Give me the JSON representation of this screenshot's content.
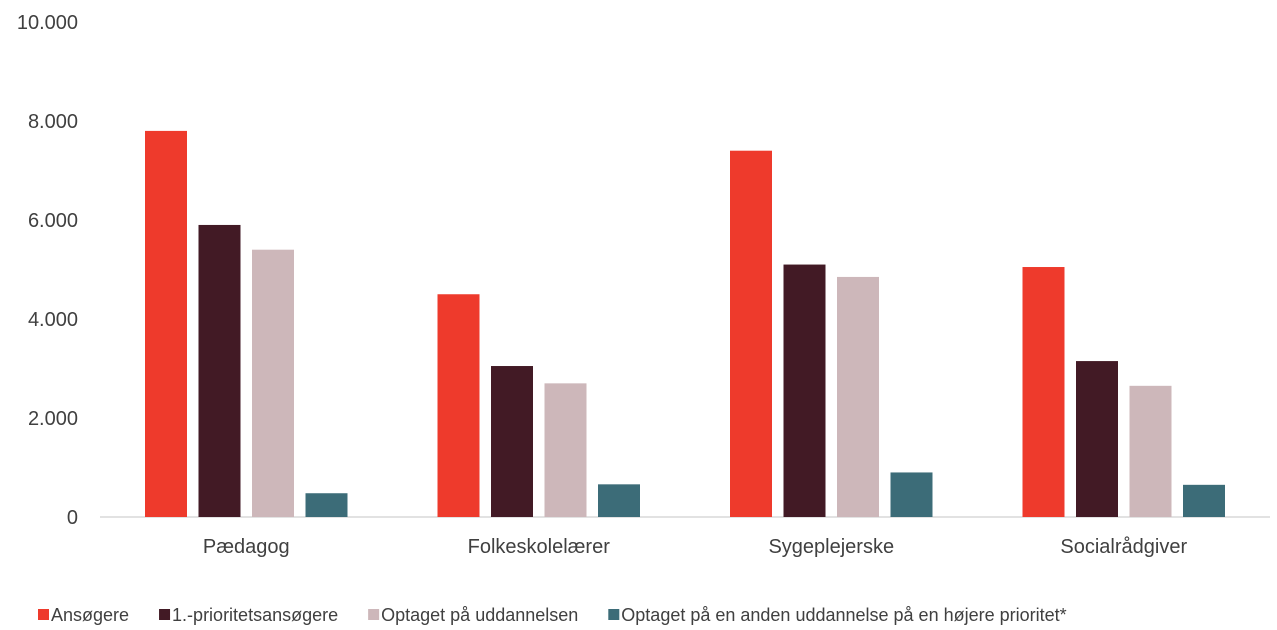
{
  "chart_data": {
    "type": "bar",
    "title": "",
    "xlabel": "",
    "ylabel": "",
    "ylim": [
      0,
      10000
    ],
    "yticks": [
      0,
      2000,
      4000,
      6000,
      8000,
      10000
    ],
    "ytick_labels": [
      "0",
      "2.000",
      "4.000",
      "6.000",
      "8.000",
      "10.000"
    ],
    "grid": false,
    "legend_position": "bottom",
    "categories": [
      "Pædagog",
      "Folkeskolelærer",
      "Sygeplejerske",
      "Socialrådgiver"
    ],
    "series": [
      {
        "name": "Ansøgere",
        "color": "#EE3A2C",
        "values": [
          7800,
          4500,
          7400,
          5050
        ]
      },
      {
        "name": "1.-prioritetsansøgere",
        "color": "#421A25",
        "values": [
          5900,
          3050,
          5100,
          3150
        ]
      },
      {
        "name": "Optaget på uddannelsen",
        "color": "#CDB7BA",
        "values": [
          5400,
          2700,
          4850,
          2650
        ]
      },
      {
        "name": "Optaget på en anden uddannelse på en højere prioritet*",
        "color": "#3C6C78",
        "values": [
          480,
          660,
          900,
          650
        ]
      }
    ]
  }
}
